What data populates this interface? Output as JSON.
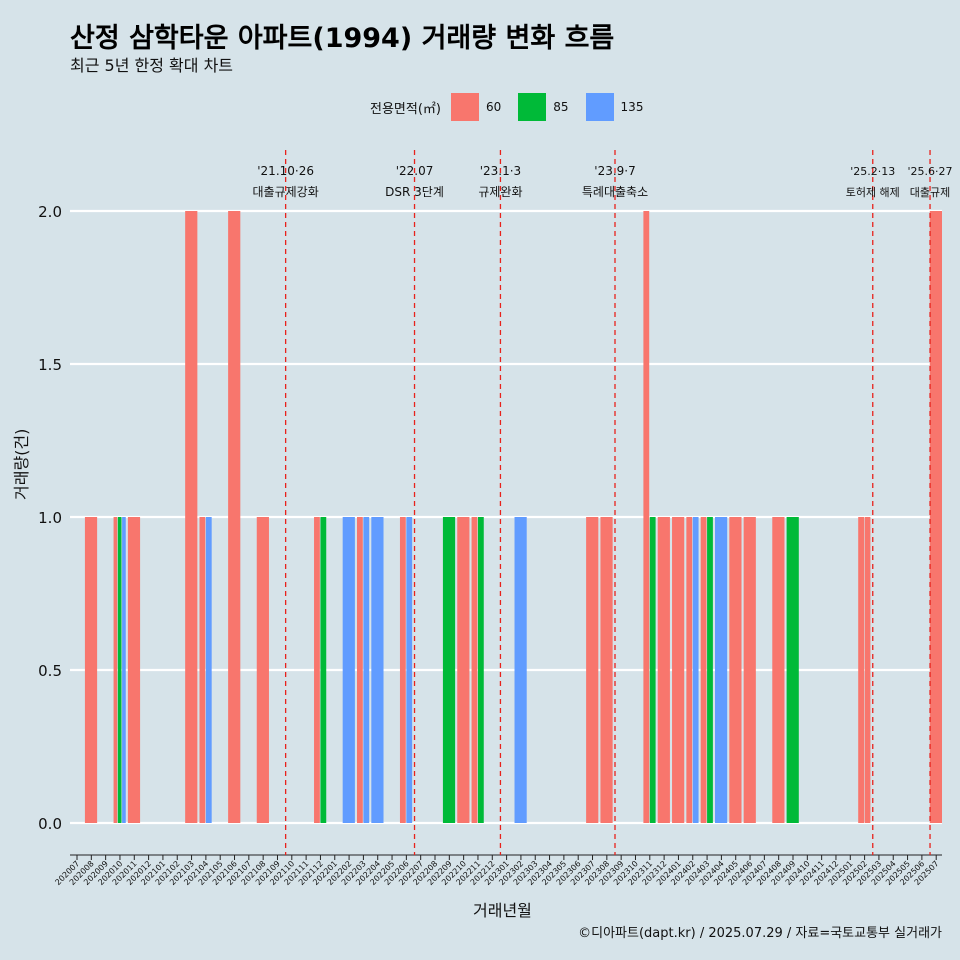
{
  "title": "산정 삼학타운 아파트(1994) 거래량 변화 흐름",
  "subtitle": "최근 5년 한정 확대 차트",
  "caption": "©디아파트(dapt.kr) / 2025.07.29 / 자료=국토교통부 실거래가",
  "legend": {
    "title": "전용면적(㎡)",
    "items": [
      {
        "label": "60",
        "color": "#f8766d"
      },
      {
        "label": "85",
        "color": "#00ba38"
      },
      {
        "label": "135",
        "color": "#619cff"
      }
    ]
  },
  "chart_data": {
    "type": "bar",
    "stacking": "dodge",
    "xlabel": "거래년월",
    "ylabel": "거래량(건)",
    "ylim": [
      0,
      2.0
    ],
    "yticks": [
      0.0,
      0.5,
      1.0,
      1.5,
      2.0
    ],
    "ytick_labels": [
      "0.0",
      "0.5",
      "1.0",
      "1.5",
      "2.0"
    ],
    "grid": true,
    "legend_position": "top",
    "categories": [
      "202007",
      "202008",
      "202009",
      "202010",
      "202011",
      "202012",
      "202101",
      "202102",
      "202103",
      "202104",
      "202105",
      "202106",
      "202107",
      "202108",
      "202109",
      "202110",
      "202111",
      "202112",
      "202201",
      "202202",
      "202203",
      "202204",
      "202205",
      "202206",
      "202207",
      "202208",
      "202209",
      "202210",
      "202211",
      "202212",
      "202301",
      "202302",
      "202303",
      "202304",
      "202305",
      "202306",
      "202307",
      "202308",
      "202309",
      "202310",
      "202311",
      "202312",
      "202401",
      "202402",
      "202403",
      "202404",
      "202405",
      "202406",
      "202407",
      "202408",
      "202409",
      "202410",
      "202411",
      "202412",
      "202501",
      "202502",
      "202503",
      "202504",
      "202505",
      "202506",
      "202507"
    ],
    "bars": [
      {
        "month": "202008",
        "series": "60",
        "value": 1
      },
      {
        "month": "202010",
        "series": "60",
        "value": 1
      },
      {
        "month": "202010",
        "series": "85",
        "value": 1
      },
      {
        "month": "202010",
        "series": "135",
        "value": 1
      },
      {
        "month": "202011",
        "series": "60",
        "value": 1
      },
      {
        "month": "202103",
        "series": "60",
        "value": 2
      },
      {
        "month": "202104",
        "series": "60",
        "value": 1
      },
      {
        "month": "202104",
        "series": "135",
        "value": 1
      },
      {
        "month": "202106",
        "series": "60",
        "value": 2
      },
      {
        "month": "202108",
        "series": "60",
        "value": 1
      },
      {
        "month": "202112",
        "series": "60",
        "value": 1
      },
      {
        "month": "202112",
        "series": "85",
        "value": 1
      },
      {
        "month": "202202",
        "series": "135",
        "value": 1
      },
      {
        "month": "202203",
        "series": "60",
        "value": 1
      },
      {
        "month": "202203",
        "series": "135",
        "value": 1
      },
      {
        "month": "202204",
        "series": "135",
        "value": 1
      },
      {
        "month": "202206",
        "series": "60",
        "value": 1
      },
      {
        "month": "202206",
        "series": "135",
        "value": 1
      },
      {
        "month": "202209",
        "series": "85",
        "value": 1
      },
      {
        "month": "202210",
        "series": "60",
        "value": 1
      },
      {
        "month": "202211",
        "series": "60",
        "value": 1
      },
      {
        "month": "202211",
        "series": "85",
        "value": 1
      },
      {
        "month": "202302",
        "series": "135",
        "value": 1
      },
      {
        "month": "202307",
        "series": "60",
        "value": 1
      },
      {
        "month": "202308",
        "series": "60",
        "value": 1
      },
      {
        "month": "202311",
        "series": "60",
        "value": 2
      },
      {
        "month": "202311",
        "series": "85",
        "value": 1
      },
      {
        "month": "202312",
        "series": "60",
        "value": 1
      },
      {
        "month": "202401",
        "series": "60",
        "value": 1
      },
      {
        "month": "202402",
        "series": "60",
        "value": 1
      },
      {
        "month": "202402",
        "series": "135",
        "value": 1
      },
      {
        "month": "202403",
        "series": "60",
        "value": 1
      },
      {
        "month": "202403",
        "series": "85",
        "value": 1
      },
      {
        "month": "202404",
        "series": "135",
        "value": 1
      },
      {
        "month": "202405",
        "series": "60",
        "value": 1
      },
      {
        "month": "202406",
        "series": "60",
        "value": 1
      },
      {
        "month": "202408",
        "series": "60",
        "value": 1
      },
      {
        "month": "202409",
        "series": "85",
        "value": 1
      },
      {
        "month": "202502",
        "series": "60",
        "value": 1
      },
      {
        "month": "202502",
        "series": "60",
        "value": 1
      },
      {
        "month": "202507",
        "series": "60",
        "value": 2
      }
    ],
    "annotations": [
      {
        "month": "202110",
        "line1": "'21.10·26",
        "line2": "대출규제강화"
      },
      {
        "month": "202207",
        "line1": "'22.07",
        "line2": "DSR 3단계"
      },
      {
        "month": "202301",
        "line1": "'23.1·3",
        "line2": "규제완화"
      },
      {
        "month": "202309",
        "line1": "'23.9·7",
        "line2": "특례대출축소"
      },
      {
        "month": "202503",
        "line1": "'25.2·13",
        "line2": "토허제 해제"
      },
      {
        "month": "202507",
        "line1": "'25.6·27",
        "line2": "대출규제"
      }
    ]
  }
}
